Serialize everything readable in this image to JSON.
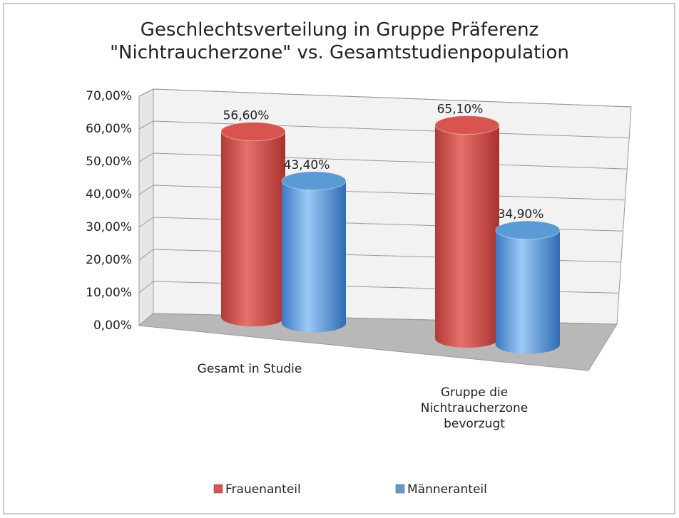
{
  "chart_data": {
    "type": "bar3d",
    "title": "Geschlechtsverteilung in Gruppe Präferenz\n\"Nichtraucherzone\" vs. Gesamtstudienpopulation",
    "categories": [
      "Gesamt in Studie",
      "Gruppe die Nichtraucherzone bevorzugt"
    ],
    "series": [
      {
        "name": "Frauenanteil",
        "color": "#d9534f",
        "values": [
          56.6,
          65.1
        ],
        "value_labels": [
          "56,60%",
          "65,10%"
        ]
      },
      {
        "name": "Männeranteil",
        "color": "#5b9bd5",
        "values": [
          43.4,
          34.9
        ],
        "value_labels": [
          "43,40%",
          "34,90%"
        ]
      }
    ],
    "ylim": [
      0,
      70
    ],
    "yticks": [
      {
        "value": 0,
        "label": "0,00%"
      },
      {
        "value": 10,
        "label": "10,00%"
      },
      {
        "value": 20,
        "label": "20,00%"
      },
      {
        "value": 30,
        "label": "30,00%"
      },
      {
        "value": 40,
        "label": "40,00%"
      },
      {
        "value": 50,
        "label": "50,00%"
      },
      {
        "value": 60,
        "label": "60,00%"
      },
      {
        "value": 70,
        "label": "70,00%"
      }
    ],
    "grid": true,
    "legend": "bottom"
  }
}
